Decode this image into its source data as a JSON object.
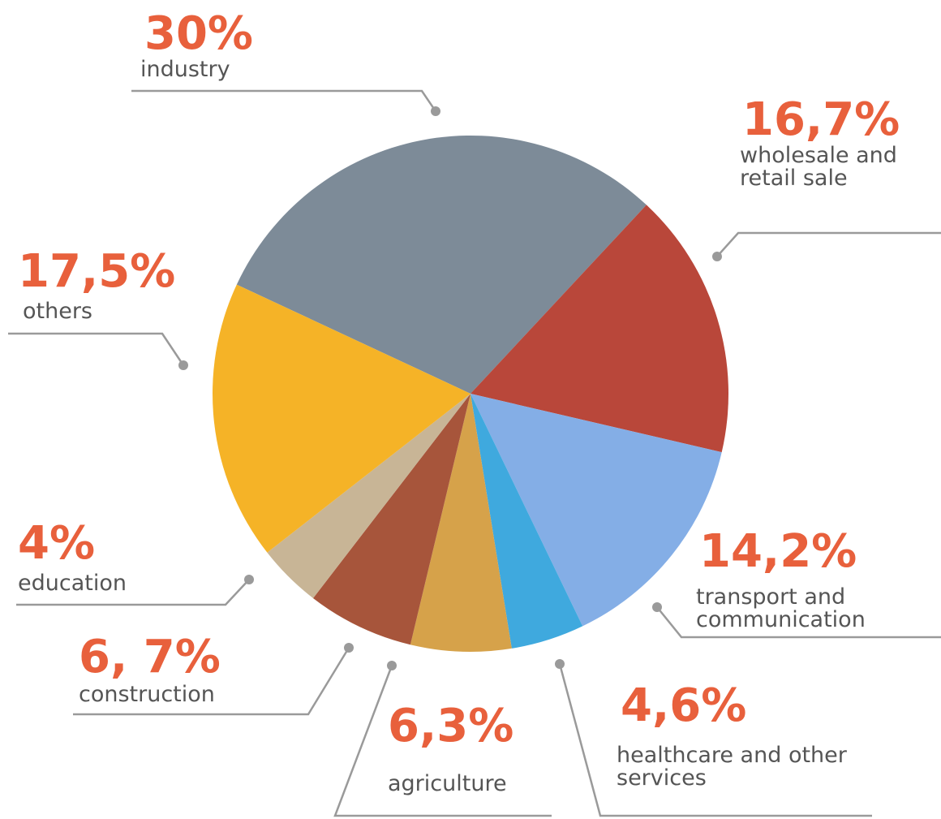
{
  "chart_data": {
    "type": "pie",
    "categories": [
      "industry",
      "wholesale and retail sale",
      "transport and communication",
      "healthcare and other services",
      "agriculture",
      "construction",
      "education",
      "others"
    ],
    "values": [
      30,
      16.7,
      14.2,
      4.6,
      6.3,
      6.7,
      4,
      17.5
    ],
    "value_labels": [
      "30%",
      "16,7%",
      "14,2%",
      "4,6%",
      "6,3%",
      "6, 7%",
      "4%",
      "17,5%"
    ],
    "colors": [
      "#7d8b98",
      "#b9473a",
      "#84aee6",
      "#3fa9de",
      "#d6a24a",
      "#a7553b",
      "#c8b596",
      "#f5b327"
    ]
  }
}
